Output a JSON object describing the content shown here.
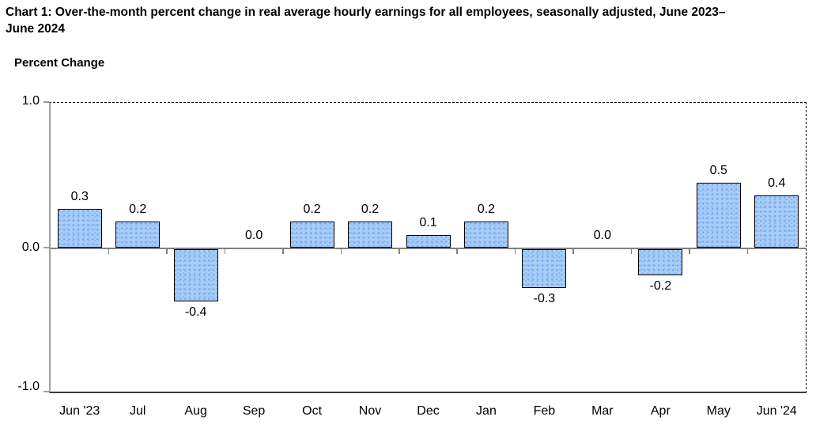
{
  "chart_data": {
    "type": "bar",
    "title": "Chart 1: Over-the-month percent change in real average hourly earnings for all employees, seasonally adjusted, June 2023–June 2024",
    "ylabel": "Percent Change",
    "xlabel": "",
    "categories": [
      "Jun '23",
      "Jul",
      "Aug",
      "Sep",
      "Oct",
      "Nov",
      "Dec",
      "Jan",
      "Feb",
      "Mar",
      "Apr",
      "May",
      "Jun '24"
    ],
    "values": [
      0.3,
      0.2,
      -0.4,
      0.0,
      0.2,
      0.2,
      0.1,
      0.2,
      -0.3,
      0.0,
      -0.2,
      0.5,
      0.4
    ],
    "value_labels": [
      "0.3",
      "0.2",
      "-0.4",
      "0.0",
      "0.2",
      "0.2",
      "0.1",
      "0.2",
      "-0.3",
      "0.0",
      "-0.2",
      "0.5",
      "0.4"
    ],
    "y_tick_labels": [
      "1.0",
      "0.0",
      "-1.0"
    ],
    "ylim": [
      -1.0,
      1.0
    ],
    "grid": "off",
    "legend": "none",
    "colors": {
      "bar_fill": "#A4CDF9",
      "bar_dot": "#7E9FE6",
      "bar_border": "#000000",
      "baseline": "#808080",
      "axis": "#A0A0A0",
      "text": "#000000"
    }
  }
}
